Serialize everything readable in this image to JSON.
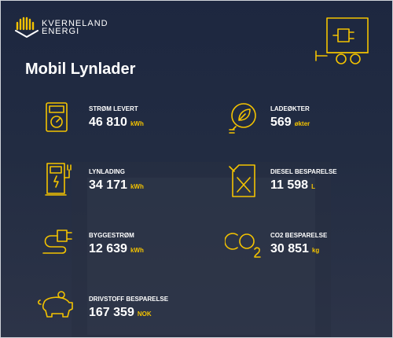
{
  "header": {
    "brand": [
      "KVERNELAND",
      "ENERGI"
    ],
    "title": "Mobil Lynlader"
  },
  "stats": [
    {
      "label": "STRØM LEVERT",
      "value": "46 810",
      "unit": "kWh"
    },
    {
      "label": "LADEØKTER",
      "value": "569",
      "unit": "økter"
    },
    {
      "label": "LYNLADING",
      "value": "34 171",
      "unit": "kWh"
    },
    {
      "label": "DIESEL BESPARELSE",
      "value": "11 598",
      "unit": "L"
    },
    {
      "label": "BYGGESTRØM",
      "value": "12 639",
      "unit": "kWh"
    },
    {
      "label": "CO2 BESPARELSE",
      "value": "30 851",
      "unit": "kg"
    },
    {
      "label": "DRIVSTOFF BESPARELSE",
      "value": "167 359",
      "unit": "NOK"
    }
  ]
}
